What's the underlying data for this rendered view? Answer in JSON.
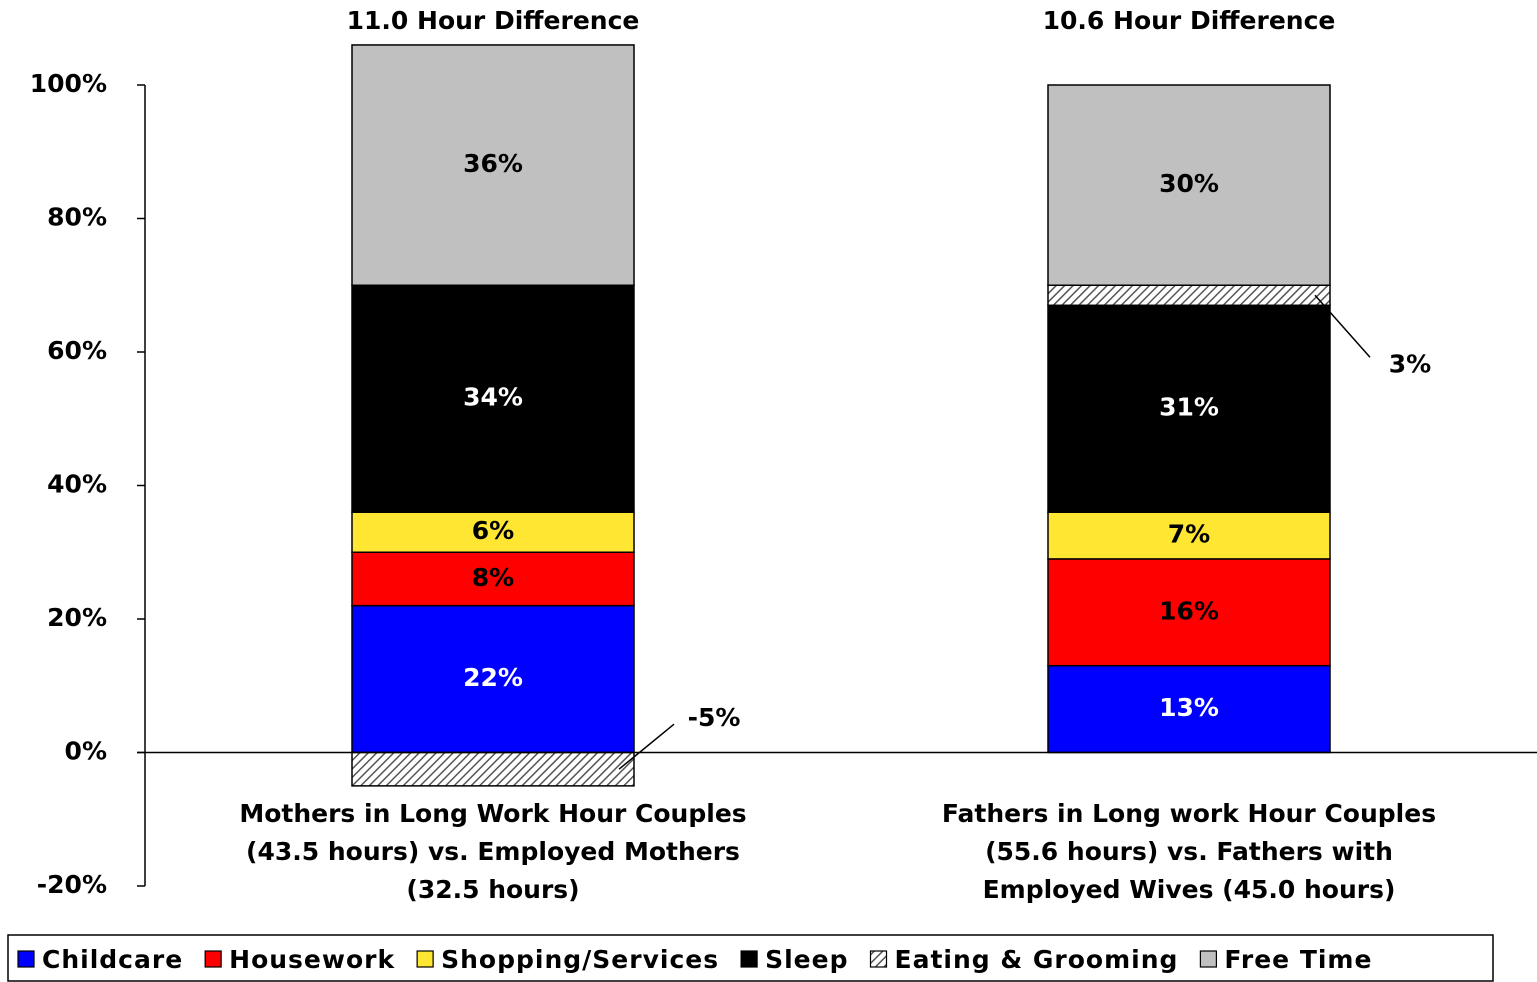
{
  "chart_data": {
    "type": "stacked-bar",
    "annotations": [
      "11.0 Hour Difference",
      "10.6 Hour Difference"
    ],
    "categories": [
      [
        "Mothers in Long Work Hour Couples",
        "(43.5 hours) vs. Employed Mothers",
        "(32.5 hours)"
      ],
      [
        "Fathers in Long work Hour Couples",
        "(55.6 hours) vs. Fathers with",
        "Employed Wives (45.0 hours)"
      ]
    ],
    "series": [
      {
        "name": "Childcare",
        "color": "#0000ff",
        "values": [
          22,
          13
        ],
        "value_labels": [
          "22%",
          "13%"
        ]
      },
      {
        "name": "Housework",
        "color": "#ff0000",
        "values": [
          8,
          16
        ],
        "value_labels": [
          "8%",
          "16%"
        ]
      },
      {
        "name": "Shopping/Services",
        "color": "#ffe633",
        "values": [
          6,
          7
        ],
        "value_labels": [
          "6%",
          "7%"
        ]
      },
      {
        "name": "Sleep",
        "color": "#000000",
        "values": [
          34,
          31
        ],
        "value_labels": [
          "34%",
          "31%"
        ]
      },
      {
        "name": "Eating & Grooming",
        "color": "#ffffff",
        "pattern": "hatch",
        "values": [
          -5,
          3
        ],
        "value_labels": [
          "-5%",
          "3%"
        ]
      },
      {
        "name": "Free Time",
        "color": "#c0c0c0",
        "values": [
          36,
          30
        ],
        "value_labels": [
          "36%",
          "30%"
        ]
      }
    ],
    "ylim": [
      -20,
      100
    ],
    "yticks": [
      {
        "value": -20,
        "label": "-20%"
      },
      {
        "value": 0,
        "label": "0%"
      },
      {
        "value": 20,
        "label": "20%"
      },
      {
        "value": 40,
        "label": "40%"
      },
      {
        "value": 60,
        "label": "60%"
      },
      {
        "value": 80,
        "label": "80%"
      },
      {
        "value": 100,
        "label": "100%"
      }
    ],
    "legend": "bottom"
  }
}
